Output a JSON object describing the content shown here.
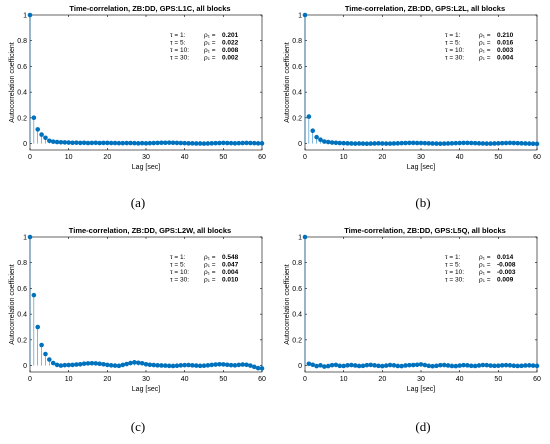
{
  "chart_data": [
    {
      "type": "stem",
      "title": "Time-correlation, ZB:DD, GPS:L1C, all blocks",
      "xlabel": "Lag [sec]",
      "ylabel": "Autocorrelation coefficient",
      "xlim": [
        0,
        60
      ],
      "ylim": [
        -0.05,
        1
      ],
      "xticks": [
        "0",
        "10",
        "20",
        "30",
        "40",
        "50",
        "60"
      ],
      "yticks": [
        "0",
        "0.2",
        "0.4",
        "0.6",
        "0.8",
        "1"
      ],
      "annotations": [
        {
          "tau": "τ = 1:",
          "rho": "ρ₁ = ",
          "value": "0.201"
        },
        {
          "tau": "τ = 5:",
          "rho": "ρ₁ = ",
          "value": "0.022"
        },
        {
          "tau": "τ = 10:",
          "rho": "ρ₁ = ",
          "value": "0.008"
        },
        {
          "tau": "τ = 30:",
          "rho": "ρ₁ = ",
          "value": "0.002"
        }
      ],
      "caption": "(a)",
      "x": [
        0,
        1,
        2,
        3,
        4,
        5,
        6,
        7,
        8,
        9,
        10,
        11,
        12,
        13,
        14,
        15,
        16,
        17,
        18,
        19,
        20,
        21,
        22,
        23,
        24,
        25,
        26,
        27,
        28,
        29,
        30,
        31,
        32,
        33,
        34,
        35,
        36,
        37,
        38,
        39,
        40,
        41,
        42,
        43,
        44,
        45,
        46,
        47,
        48,
        49,
        50,
        51,
        52,
        53,
        54,
        55,
        56,
        57,
        58,
        59,
        60
      ],
      "values": [
        1,
        0.201,
        0.11,
        0.07,
        0.045,
        0.022,
        0.015,
        0.012,
        0.01,
        0.009,
        0.008,
        0.006,
        0.007,
        0.005,
        0.006,
        0.004,
        0.005,
        0.006,
        0.004,
        0.005,
        0.005,
        0.004,
        0.004,
        0.003,
        0.003,
        0.004,
        0.004,
        0.003,
        0.002,
        0.003,
        0.002,
        0.003,
        0.004,
        0.005,
        0.006,
        0.006,
        0.007,
        0.006,
        0.005,
        0.004,
        0.003,
        0.002,
        0.002,
        0.001,
        0.001,
        0.0,
        0.001,
        0.002,
        0.003,
        0.004,
        0.005,
        0.004,
        0.003,
        0.002,
        0.003,
        0.004,
        0.005,
        0.004,
        0.003,
        0.002,
        0.002
      ]
    },
    {
      "type": "stem",
      "title": "Time-correlation, ZB:DD, GPS:L2L, all blocks",
      "xlabel": "Lag [sec]",
      "ylabel": "Autocorrelation coefficient",
      "xlim": [
        0,
        60
      ],
      "ylim": [
        -0.05,
        1
      ],
      "xticks": [
        "0",
        "10",
        "20",
        "30",
        "40",
        "50",
        "60"
      ],
      "yticks": [
        "0",
        "0.2",
        "0.4",
        "0.6",
        "0.8",
        "1"
      ],
      "annotations": [
        {
          "tau": "τ = 1:",
          "rho": "ρ₁ = ",
          "value": "0.210"
        },
        {
          "tau": "τ = 5:",
          "rho": "ρ₁ = ",
          "value": "0.016"
        },
        {
          "tau": "τ = 10:",
          "rho": "ρ₁ = ",
          "value": "0.003"
        },
        {
          "tau": "τ = 30:",
          "rho": "ρ₁ = ",
          "value": "0.004"
        }
      ],
      "caption": "(b)",
      "x": [
        0,
        1,
        2,
        3,
        4,
        5,
        6,
        7,
        8,
        9,
        10,
        11,
        12,
        13,
        14,
        15,
        16,
        17,
        18,
        19,
        20,
        21,
        22,
        23,
        24,
        25,
        26,
        27,
        28,
        29,
        30,
        31,
        32,
        33,
        34,
        35,
        36,
        37,
        38,
        39,
        40,
        41,
        42,
        43,
        44,
        45,
        46,
        47,
        48,
        49,
        50,
        51,
        52,
        53,
        54,
        55,
        56,
        57,
        58,
        59,
        60
      ],
      "values": [
        1,
        0.21,
        0.1,
        0.05,
        0.03,
        0.016,
        0.012,
        0.008,
        0.006,
        0.004,
        0.003,
        0.002,
        0.001,
        0.0,
        0.001,
        0.0,
        -0.001,
        0.0,
        0.001,
        0.002,
        0.001,
        0.0,
        0.0,
        0.001,
        0.002,
        0.003,
        0.004,
        0.005,
        0.005,
        0.004,
        0.004,
        0.003,
        0.002,
        0.001,
        0.0,
        -0.001,
        0.0,
        0.001,
        0.002,
        0.003,
        0.004,
        0.005,
        0.005,
        0.004,
        0.003,
        0.002,
        0.001,
        0.0,
        0.0,
        0.001,
        0.002,
        0.003,
        0.004,
        0.005,
        0.004,
        0.003,
        0.002,
        0.001,
        0.0,
        -0.001,
        -0.002
      ]
    },
    {
      "type": "stem",
      "title": "Time-correlation, ZB:DD, GPS:L2W, all blocks",
      "xlabel": "Lag [sec]",
      "ylabel": "Autocorrelation coefficient",
      "xlim": [
        0,
        60
      ],
      "ylim": [
        -0.05,
        1
      ],
      "xticks": [
        "0",
        "10",
        "20",
        "30",
        "40",
        "50",
        "60"
      ],
      "yticks": [
        "0",
        "0.2",
        "0.4",
        "0.6",
        "0.8",
        "1"
      ],
      "annotations": [
        {
          "tau": "τ = 1:",
          "rho": "ρ₁ = ",
          "value": "0.548"
        },
        {
          "tau": "τ = 5:",
          "rho": "ρ₁ = ",
          "value": "0.047"
        },
        {
          "tau": "τ = 10:",
          "rho": "ρ₁ = ",
          "value": "0.004"
        },
        {
          "tau": "τ = 30:",
          "rho": "ρ₁ = ",
          "value": "0.010"
        }
      ],
      "caption": "(c)",
      "x": [
        0,
        1,
        2,
        3,
        4,
        5,
        6,
        7,
        8,
        9,
        10,
        11,
        12,
        13,
        14,
        15,
        16,
        17,
        18,
        19,
        20,
        21,
        22,
        23,
        24,
        25,
        26,
        27,
        28,
        29,
        30,
        31,
        32,
        33,
        34,
        35,
        36,
        37,
        38,
        39,
        40,
        41,
        42,
        43,
        44,
        45,
        46,
        47,
        48,
        49,
        50,
        51,
        52,
        53,
        54,
        55,
        56,
        57,
        58,
        59,
        60
      ],
      "values": [
        1,
        0.548,
        0.3,
        0.16,
        0.09,
        0.047,
        0.02,
        0.005,
        0.0,
        0.003,
        0.004,
        0.005,
        0.008,
        0.01,
        0.015,
        0.017,
        0.018,
        0.017,
        0.014,
        0.01,
        0.005,
        0.002,
        0.0,
        -0.002,
        0.005,
        0.012,
        0.02,
        0.025,
        0.022,
        0.018,
        0.01,
        0.006,
        0.004,
        0.002,
        0.001,
        0.0,
        -0.002,
        -0.003,
        -0.001,
        0.002,
        0.003,
        0.004,
        0.002,
        0.0,
        -0.002,
        -0.001,
        0.002,
        0.005,
        0.008,
        0.01,
        0.009,
        0.006,
        0.003,
        0.002,
        0.005,
        0.008,
        0.006,
        0.0,
        -0.01,
        -0.02,
        -0.022
      ]
    },
    {
      "type": "stem",
      "title": "Time-correlation, ZB:DD, GPS:L5Q, all blocks",
      "xlabel": "Lag [sec]",
      "ylabel": "Autocorrelation coefficient",
      "xlim": [
        0,
        60
      ],
      "ylim": [
        -0.05,
        1
      ],
      "xticks": [
        "0",
        "10",
        "20",
        "30",
        "40",
        "50",
        "60"
      ],
      "yticks": [
        "0",
        "0.2",
        "0.4",
        "0.6",
        "0.8",
        "1"
      ],
      "annotations": [
        {
          "tau": "τ = 1:",
          "rho": "ρ₁ = ",
          "value": "0.014"
        },
        {
          "tau": "τ = 5:",
          "rho": "ρ₁ = ",
          "value": "-0.008"
        },
        {
          "tau": "τ = 10:",
          "rho": "ρ₁ = ",
          "value": "-0.003"
        },
        {
          "tau": "τ = 30:",
          "rho": "ρ₁ = ",
          "value": "0.009"
        }
      ],
      "caption": "(d)",
      "x": [
        0,
        1,
        2,
        3,
        4,
        5,
        6,
        7,
        8,
        9,
        10,
        11,
        12,
        13,
        14,
        15,
        16,
        17,
        18,
        19,
        20,
        21,
        22,
        23,
        24,
        25,
        26,
        27,
        28,
        29,
        30,
        31,
        32,
        33,
        34,
        35,
        36,
        37,
        38,
        39,
        40,
        41,
        42,
        43,
        44,
        45,
        46,
        47,
        48,
        49,
        50,
        51,
        52,
        53,
        54,
        55,
        56,
        57,
        58,
        59,
        60
      ],
      "values": [
        1,
        0.014,
        0.006,
        -0.004,
        0.002,
        -0.008,
        -0.004,
        0.003,
        0.005,
        -0.002,
        -0.003,
        0.002,
        0.004,
        0.001,
        -0.003,
        -0.002,
        0.003,
        0.005,
        0.002,
        -0.002,
        -0.004,
        0.0,
        0.004,
        0.002,
        -0.003,
        -0.004,
        0.001,
        0.003,
        0.004,
        0.006,
        0.009,
        0.004,
        -0.002,
        -0.005,
        -0.002,
        0.003,
        0.004,
        0.001,
        -0.003,
        -0.004,
        0.0,
        0.003,
        0.002,
        -0.002,
        -0.003,
        0.001,
        0.004,
        0.003,
        0.0,
        -0.002,
        -0.001,
        0.002,
        0.003,
        0.002,
        -0.001,
        -0.003,
        -0.002,
        0.001,
        0.002,
        0.0,
        -0.002
      ]
    }
  ],
  "style": {
    "stem_color": "#0072bd",
    "axis_color": "#000000"
  }
}
